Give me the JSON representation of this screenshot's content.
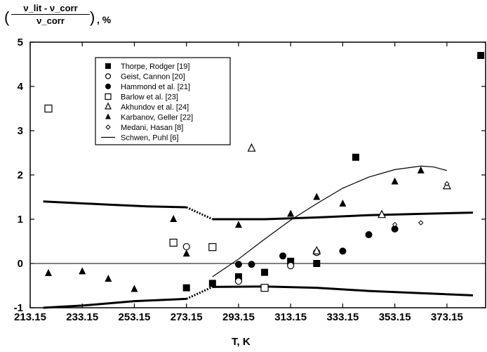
{
  "chart_data": {
    "type": "scatter",
    "title": "",
    "ylabel": {
      "numerator": "ν_lit - ν_corr",
      "denominator": "ν_corr",
      "unit": ", %"
    },
    "xlabel": "T, K",
    "xlim": [
      213.15,
      388
    ],
    "ylim": [
      -1,
      5
    ],
    "xticks": [
      "213.15",
      "233.15",
      "253.15",
      "273.15",
      "293.15",
      "313.15",
      "333.15",
      "353.15",
      "373.15"
    ],
    "yticks": [
      "-1",
      "0",
      "1",
      "2",
      "3",
      "4",
      "5"
    ],
    "legend_position": "top-left",
    "series": [
      {
        "name": "Thorpe, Rodger [19]",
        "marker": "filled-square",
        "points": [
          [
            273.15,
            -0.55
          ],
          [
            283.15,
            -0.45
          ],
          [
            293.15,
            -0.3
          ],
          [
            303.15,
            -0.2
          ],
          [
            313.15,
            0.05
          ],
          [
            323.15,
            0.0
          ],
          [
            338.15,
            2.4
          ],
          [
            386.15,
            4.7
          ]
        ]
      },
      {
        "name": "Geist, Cannon [20]",
        "marker": "open-circle",
        "points": [
          [
            273.15,
            0.38
          ],
          [
            293.15,
            -0.4
          ],
          [
            313.15,
            -0.05
          ],
          [
            323.15,
            0.25
          ]
        ]
      },
      {
        "name": "Hammond et al. [21]",
        "marker": "filled-circle",
        "points": [
          [
            293.15,
            -0.02
          ],
          [
            298.15,
            -0.02
          ],
          [
            310.15,
            0.17
          ],
          [
            333.15,
            0.28
          ],
          [
            343.15,
            0.65
          ],
          [
            353.15,
            0.78
          ]
        ]
      },
      {
        "name": "Barlow et al. [23]",
        "marker": "open-square",
        "points": [
          [
            220.15,
            3.5
          ],
          [
            268.15,
            0.47
          ],
          [
            283.15,
            0.37
          ],
          [
            303.15,
            -0.55
          ]
        ]
      },
      {
        "name": "Akhundov et al. [24]",
        "marker": "open-triangle",
        "points": [
          [
            298.15,
            2.6
          ],
          [
            323.15,
            0.28
          ],
          [
            348.15,
            1.1
          ],
          [
            373.15,
            1.75
          ]
        ]
      },
      {
        "name": "Karbanov, Geller [22]",
        "marker": "filled-triangle",
        "points": [
          [
            220.15,
            -0.22
          ],
          [
            233.15,
            -0.18
          ],
          [
            243.15,
            -0.35
          ],
          [
            253.15,
            -0.58
          ],
          [
            268.15,
            1.0
          ],
          [
            273.15,
            0.22
          ],
          [
            293.15,
            0.87
          ],
          [
            313.15,
            1.12
          ],
          [
            323.15,
            1.5
          ],
          [
            333.15,
            1.35
          ],
          [
            353.15,
            1.85
          ],
          [
            363.15,
            2.1
          ]
        ]
      },
      {
        "name": "Medani, Hasan [8]",
        "marker": "small-diamond",
        "points": [
          [
            353.15,
            0.88
          ],
          [
            363.15,
            0.92
          ],
          [
            373.15,
            1.8
          ]
        ]
      },
      {
        "name": "Schwen, Puhl [6]",
        "marker": "line",
        "points": [
          [
            283.15,
            -0.3
          ],
          [
            293.15,
            0.1
          ],
          [
            303.15,
            0.55
          ],
          [
            313.15,
            0.98
          ],
          [
            323.15,
            1.35
          ],
          [
            333.15,
            1.7
          ],
          [
            343.15,
            1.95
          ],
          [
            353.15,
            2.12
          ],
          [
            363.15,
            2.2
          ],
          [
            368.15,
            2.18
          ],
          [
            373.15,
            2.1
          ]
        ]
      }
    ],
    "band_upper": {
      "left": [
        [
          218.15,
          1.4
        ],
        [
          243.15,
          1.33
        ],
        [
          258.15,
          1.29
        ],
        [
          273.15,
          1.27
        ]
      ],
      "right": [
        [
          283.15,
          1.0
        ],
        [
          303.15,
          1.0
        ],
        [
          323.15,
          1.04
        ],
        [
          343.15,
          1.09
        ],
        [
          363.15,
          1.12
        ],
        [
          383.15,
          1.15
        ]
      ]
    },
    "band_lower": {
      "left": [
        [
          218.15,
          -1.0
        ],
        [
          233.15,
          -0.95
        ],
        [
          253.15,
          -0.85
        ],
        [
          273.15,
          -0.8
        ]
      ],
      "right": [
        [
          283.15,
          -0.53
        ],
        [
          303.15,
          -0.52
        ],
        [
          323.15,
          -0.55
        ],
        [
          343.15,
          -0.62
        ],
        [
          363.15,
          -0.67
        ],
        [
          383.15,
          -0.72
        ]
      ]
    }
  }
}
